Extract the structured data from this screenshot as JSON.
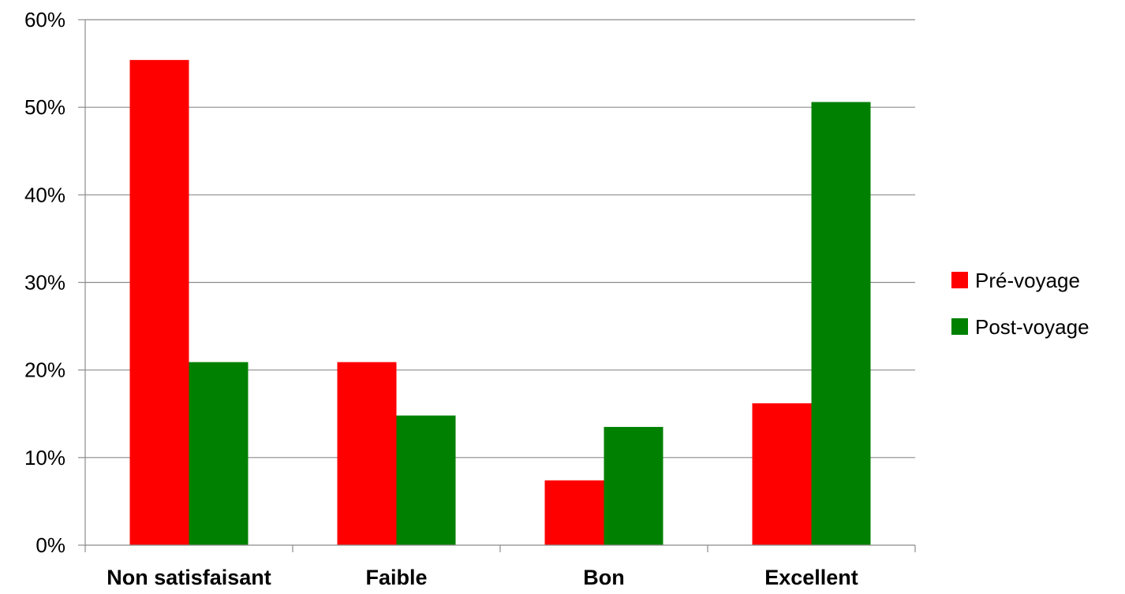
{
  "chart_data": {
    "type": "bar",
    "categories": [
      "Non satisfaisant",
      "Faible",
      "Bon",
      "Excellent"
    ],
    "series": [
      {
        "name": "Pré-voyage",
        "color": "#ff0000",
        "values": [
          55.4,
          20.9,
          7.4,
          16.2
        ]
      },
      {
        "name": "Post-voyage",
        "color": "#008000",
        "values": [
          20.9,
          14.8,
          13.5,
          50.6
        ]
      }
    ],
    "yticks": [
      "0%",
      "10%",
      "20%",
      "30%",
      "40%",
      "50%",
      "60%"
    ],
    "ylim": [
      0,
      60
    ],
    "y_unit": "%",
    "grid": true,
    "legend_position": "right",
    "title": "",
    "xlabel": "",
    "ylabel": ""
  }
}
